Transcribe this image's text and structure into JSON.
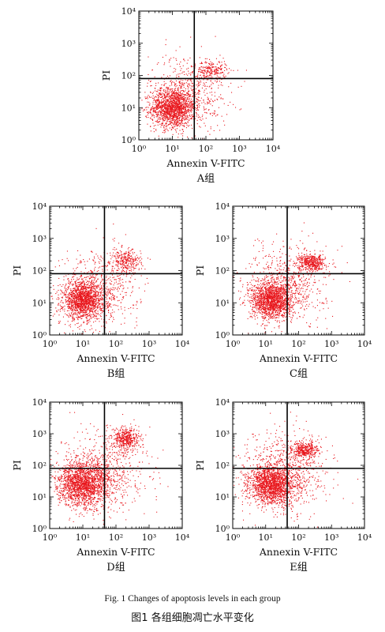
{
  "figure": {
    "caption_en": "Fig. 1    Changes of apoptosis levels in each group",
    "caption_zh": "图1    各组细胞凋亡水平变化"
  },
  "colors": {
    "dots": "#e8161c",
    "axis": "#000000",
    "gate": "#000000"
  },
  "chart_data": [
    {
      "type": "scatter",
      "title": "",
      "panel_label": "A组",
      "xlabel": "Annexin V-FITC",
      "ylabel": "PI",
      "x_scale": "log",
      "y_scale": "log",
      "xlim": [
        1,
        10000
      ],
      "ylim": [
        1,
        10000
      ],
      "x_ticks": [
        "10⁰",
        "10¹",
        "10²",
        "10³",
        "10⁴"
      ],
      "y_ticks": [
        "10⁰",
        "10¹",
        "10²",
        "10³",
        "10⁴"
      ],
      "gate": {
        "x": 45,
        "y": 80
      },
      "grid": false,
      "clusters": [
        {
          "name": "",
          "center": [
            10,
            10
          ],
          "spread": [
            0.32,
            0.3
          ],
          "n": 1500
        },
        {
          "name": "",
          "center": [
            150,
            150
          ],
          "spread": [
            0.22,
            0.15
          ],
          "n": 200
        },
        {
          "name": "",
          "center": [
            30,
            30
          ],
          "spread": [
            0.6,
            0.6
          ],
          "n": 600
        }
      ]
    },
    {
      "type": "scatter",
      "title": "",
      "panel_label": "B组",
      "xlabel": "Annexin V-FITC",
      "ylabel": "PI",
      "x_scale": "log",
      "y_scale": "log",
      "xlim": [
        1,
        10000
      ],
      "ylim": [
        1,
        10000
      ],
      "x_ticks": [
        "10⁰",
        "10¹",
        "10²",
        "10³",
        "10⁴"
      ],
      "y_ticks": [
        "10⁰",
        "10¹",
        "10²",
        "10³",
        "10⁴"
      ],
      "gate": {
        "x": 45,
        "y": 80
      },
      "grid": false,
      "clusters": [
        {
          "name": "",
          "center": [
            10,
            12
          ],
          "spread": [
            0.3,
            0.28
          ],
          "n": 1500
        },
        {
          "name": "",
          "center": [
            200,
            200
          ],
          "spread": [
            0.22,
            0.18
          ],
          "n": 280
        },
        {
          "name": "",
          "center": [
            30,
            30
          ],
          "spread": [
            0.6,
            0.6
          ],
          "n": 650
        }
      ]
    },
    {
      "type": "scatter",
      "title": "",
      "panel_label": "C组",
      "xlabel": "Annexin V-FITC",
      "ylabel": "PI",
      "x_scale": "log",
      "y_scale": "log",
      "xlim": [
        1,
        10000
      ],
      "ylim": [
        1,
        10000
      ],
      "x_ticks": [
        "10⁰",
        "10¹",
        "10²",
        "10³",
        "10⁴"
      ],
      "y_ticks": [
        "10⁰",
        "10¹",
        "10²",
        "10³",
        "10⁴"
      ],
      "gate": {
        "x": 45,
        "y": 80
      },
      "grid": false,
      "clusters": [
        {
          "name": "",
          "center": [
            15,
            12
          ],
          "spread": [
            0.3,
            0.28
          ],
          "n": 1500
        },
        {
          "name": "",
          "center": [
            250,
            180
          ],
          "spread": [
            0.2,
            0.13
          ],
          "n": 450
        },
        {
          "name": "",
          "center": [
            40,
            40
          ],
          "spread": [
            0.6,
            0.6
          ],
          "n": 700
        }
      ]
    },
    {
      "type": "scatter",
      "title": "",
      "panel_label": "D组",
      "xlabel": "Annexin V-FITC",
      "ylabel": "PI",
      "x_scale": "log",
      "y_scale": "log",
      "xlim": [
        1,
        10000
      ],
      "ylim": [
        1,
        10000
      ],
      "x_ticks": [
        "10⁰",
        "10¹",
        "10²",
        "10³",
        "10⁴"
      ],
      "y_ticks": [
        "10⁰",
        "10¹",
        "10²",
        "10³",
        "10⁴"
      ],
      "gate": {
        "x": 45,
        "y": 80
      },
      "grid": false,
      "clusters": [
        {
          "name": "",
          "center": [
            10,
            25
          ],
          "spread": [
            0.38,
            0.33
          ],
          "n": 1700
        },
        {
          "name": "",
          "center": [
            200,
            700
          ],
          "spread": [
            0.2,
            0.18
          ],
          "n": 450
        },
        {
          "name": "",
          "center": [
            40,
            60
          ],
          "spread": [
            0.65,
            0.65
          ],
          "n": 750
        }
      ]
    },
    {
      "type": "scatter",
      "title": "",
      "panel_label": "E组",
      "xlabel": "Annexin V-FITC",
      "ylabel": "PI",
      "x_scale": "log",
      "y_scale": "log",
      "xlim": [
        1,
        10000
      ],
      "ylim": [
        1,
        10000
      ],
      "x_ticks": [
        "10⁰",
        "10¹",
        "10²",
        "10³",
        "10⁴"
      ],
      "y_ticks": [
        "10⁰",
        "10¹",
        "10²",
        "10³",
        "10⁴"
      ],
      "gate": {
        "x": 45,
        "y": 80
      },
      "grid": false,
      "clusters": [
        {
          "name": "",
          "center": [
            15,
            25
          ],
          "spread": [
            0.35,
            0.3
          ],
          "n": 1600
        },
        {
          "name": "",
          "center": [
            150,
            300
          ],
          "spread": [
            0.2,
            0.15
          ],
          "n": 350
        },
        {
          "name": "",
          "center": [
            40,
            60
          ],
          "spread": [
            0.65,
            0.65
          ],
          "n": 800
        }
      ]
    }
  ]
}
